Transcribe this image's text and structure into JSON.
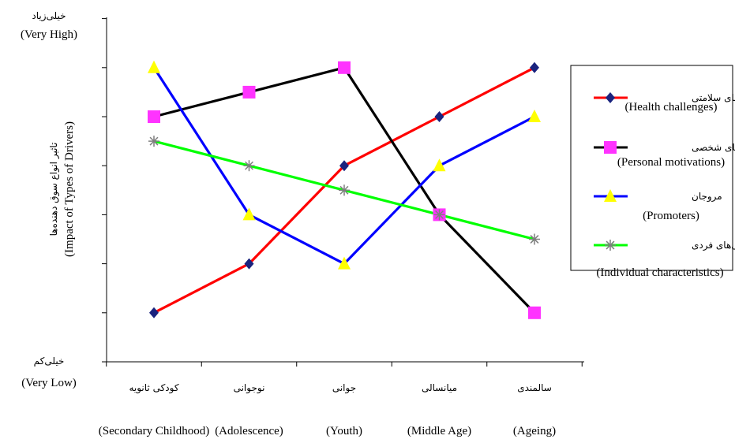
{
  "chart_data": {
    "type": "line",
    "title": "",
    "ylabel_fa": "تاثیر انواع سوق دهنده‌ها",
    "ylabel_en": "(Impact of Types of Drivers)",
    "y_top_fa": "خیلی‌زیاد",
    "y_top_en": "(Very High)",
    "y_bottom_fa": "خیلی‌کم",
    "y_bottom_en": "(Very Low)",
    "ylim": [
      0,
      7
    ],
    "categories": [
      {
        "fa": "کودکی ثانویه",
        "en": "(Secondary Childhood)"
      },
      {
        "fa": "نوجوانی",
        "en": "(Adolescence)"
      },
      {
        "fa": "جوانی",
        "en": "(Youth)"
      },
      {
        "fa": "میانسالی",
        "en": "(Middle Age)"
      },
      {
        "fa": "سالمندی",
        "en": "(Ageing)"
      }
    ],
    "series": [
      {
        "name_fa": "چالش‌های سلامتی",
        "name_en": "(Health challenges)",
        "color": "#ff0000",
        "marker": "diamond",
        "marker_color": "#1a237e",
        "values": [
          1,
          2,
          4,
          5,
          6
        ]
      },
      {
        "name_fa": "انگیزه‌های شخصی",
        "name_en": "(Personal motivations)",
        "color": "#000000",
        "marker": "square",
        "marker_color": "#ff33ff",
        "values": [
          5,
          5.5,
          6,
          3,
          1
        ]
      },
      {
        "name_fa": "مروجان",
        "name_en": "(Promoters)",
        "color": "#0000ff",
        "marker": "triangle",
        "marker_color": "#ffff00",
        "values": [
          6,
          3,
          2,
          4,
          5
        ]
      },
      {
        "name_fa": "ویژگی‌های فردی",
        "name_en": "(Individual characteristics)",
        "color": "#00ff00",
        "marker": "star",
        "marker_color": "#7f7f7f",
        "values": [
          4.5,
          4,
          3.5,
          3,
          2.5
        ]
      }
    ],
    "legend_position": "right",
    "grid": false
  }
}
